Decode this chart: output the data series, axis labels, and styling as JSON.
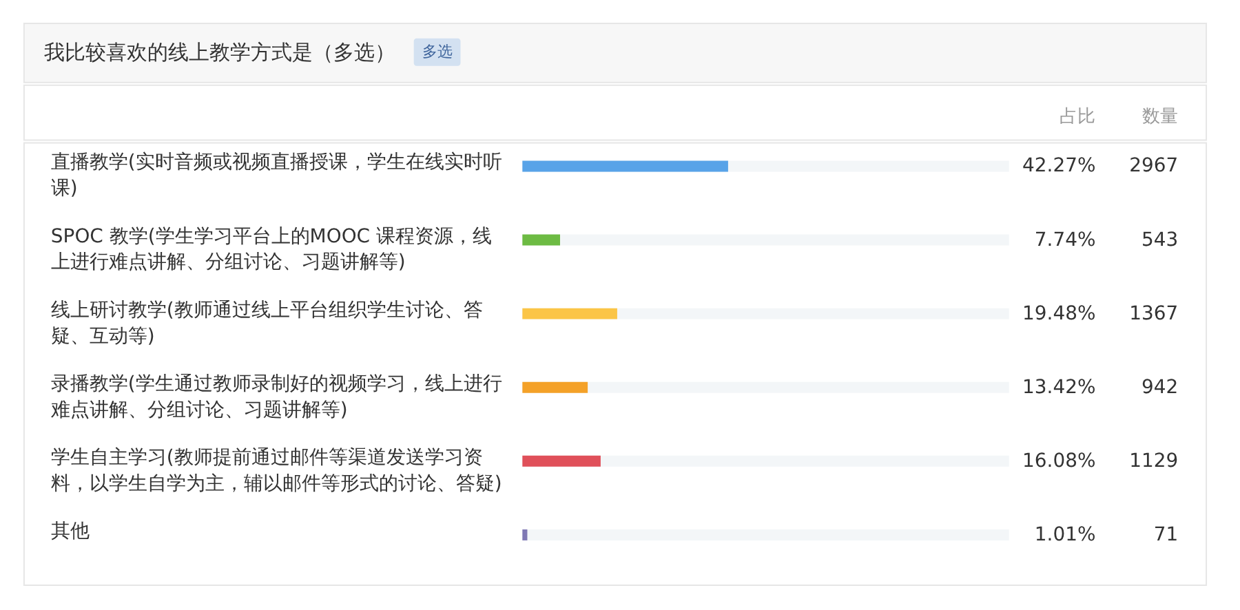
{
  "chart_data": {
    "type": "bar",
    "orientation": "horizontal",
    "title": "我比较喜欢的线上教学方式是（多选）",
    "subtitle": "多选",
    "xlabel": "占比",
    "categories": [
      "直播教学(实时音频或视频直播授课，学生在线实时听课)",
      "SPOC 教学(学生学习平台上的MOOC 课程资源，线上进行难点讲解、分组讨论、习题讲解等)",
      "线上研讨教学(教师通过线上平台组织学生讨论、答疑、互动等)",
      "录播教学(学生通过教师录制好的视频学习，线上进行难点讲解、分组讨论、习题讲解等)",
      "学生自主学习(教师提前通过邮件等渠道发送学习资料，以学生自学为主，辅以邮件等形式的讨论、答疑)",
      "其他"
    ],
    "xlim": [
      0,
      100
    ],
    "values": [
      42.27,
      7.74,
      19.48,
      13.42,
      16.08,
      1.01
    ],
    "colors": [
      "#58a3e8",
      "#6dbb43",
      "#fbc547",
      "#f4a128",
      "#e0505a",
      "#7f78b4"
    ],
    "value_labels": [
      "42.27%",
      "7.74%",
      "19.48%",
      "13.42%",
      "16.08%",
      "1.01%"
    ],
    "annotations": [
      "数量",
      "2967",
      "543",
      "1367",
      "942",
      "1129",
      "71"
    ]
  }
}
